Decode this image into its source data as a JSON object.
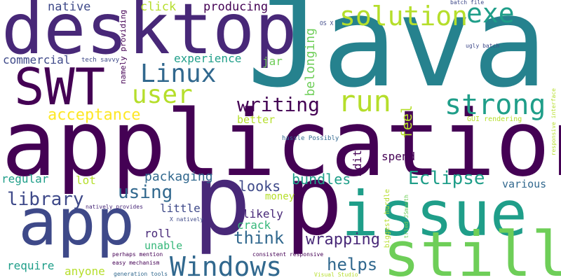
{
  "palette": {
    "dark_purple": "#440154",
    "purple": "#482878",
    "indigo": "#3e4989",
    "blue": "#31688e",
    "teal": "#26828e",
    "teal_green": "#1f9e89",
    "green": "#35b779",
    "light_green": "#6ece58",
    "lime": "#b5de2b",
    "yellow": "#fde725"
  },
  "words": [
    "Java",
    "application",
    "desktop",
    "SWT",
    "app",
    "p",
    "issue",
    "still",
    "Windows",
    "Linux",
    "solution",
    "exe",
    "strong",
    "run",
    "user",
    "writing",
    "Eclipse",
    "acceptance",
    "library",
    "using",
    "packaging",
    "looks",
    "bundles",
    "think",
    "helps",
    "wrapping",
    "native",
    "producing",
    "click",
    "commercial",
    "experience",
    "jar",
    "belonging",
    "namely providing",
    "tech savvy",
    "feel",
    "better",
    "Edit",
    "spend",
    "regular",
    "lot",
    "little",
    "money",
    "likely",
    "crack",
    "roll",
    "unable",
    "require",
    "anyone",
    "various",
    "GUI rendering",
    "hassle Possibly",
    "OS X",
    "batch file",
    "ugly batch",
    "responsive interface",
    "biggest hurdle",
    "tried JSmooth",
    "X natively",
    "natively provides",
    "perhaps mention",
    "easy mechanism",
    "consistent responsive",
    "generation tools",
    "Visual Studio"
  ]
}
